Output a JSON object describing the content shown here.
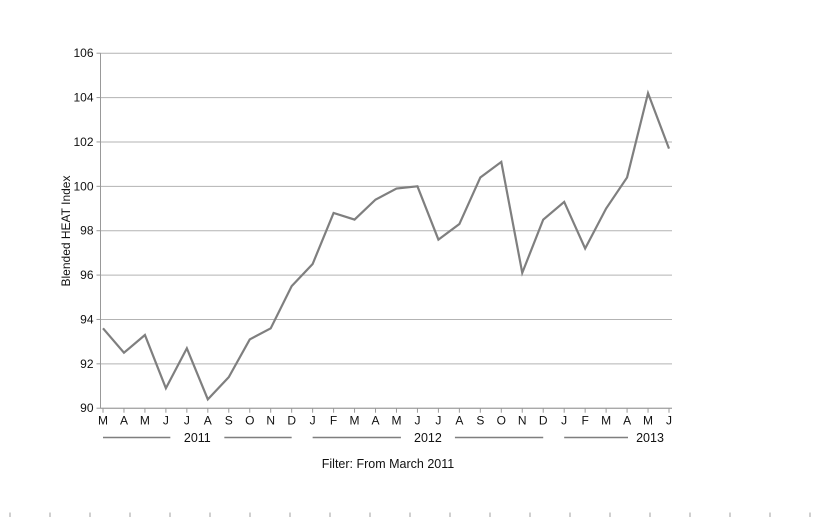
{
  "chart_data": {
    "type": "line",
    "title": "",
    "xlabel": "",
    "ylabel": "Blended HEAT Index",
    "filter_note": "Filter: From March 2011",
    "ylim": [
      90,
      106
    ],
    "yticks": [
      90,
      92,
      94,
      96,
      98,
      100,
      102,
      104,
      106
    ],
    "grid": true,
    "legend": "none",
    "x_tick_labels": [
      "M",
      "A",
      "M",
      "J",
      "J",
      "A",
      "S",
      "O",
      "N",
      "D",
      "J",
      "F",
      "M",
      "A",
      "M",
      "J",
      "J",
      "A",
      "S",
      "O",
      "N",
      "D",
      "J",
      "F",
      "M",
      "A",
      "M",
      "J"
    ],
    "year_groups": [
      {
        "label": "2011",
        "start_index": 0,
        "end_index": 9,
        "label_position": "center"
      },
      {
        "label": "2012",
        "start_index": 10,
        "end_index": 21,
        "label_position": "center"
      },
      {
        "label": "2013",
        "start_index": 22,
        "end_index": 27,
        "label_position": "end"
      }
    ],
    "categories": [
      "Mar 2011",
      "Apr 2011",
      "May 2011",
      "Jun 2011",
      "Jul 2011",
      "Aug 2011",
      "Sep 2011",
      "Oct 2011",
      "Nov 2011",
      "Dec 2011",
      "Jan 2012",
      "Feb 2012",
      "Mar 2012",
      "Apr 2012",
      "May 2012",
      "Jun 2012",
      "Jul 2012",
      "Aug 2012",
      "Sep 2012",
      "Oct 2012",
      "Nov 2012",
      "Dec 2012",
      "Jan 2013",
      "Feb 2013",
      "Mar 2013",
      "Apr 2013",
      "May 2013",
      "Jun 2013"
    ],
    "series": [
      {
        "name": "Blended HEAT Index",
        "values": [
          93.6,
          92.5,
          93.3,
          90.9,
          92.7,
          90.4,
          91.4,
          93.1,
          93.6,
          95.5,
          96.5,
          98.8,
          98.5,
          99.4,
          99.9,
          100.0,
          97.6,
          98.3,
          100.4,
          101.1,
          96.1,
          98.5,
          99.3,
          97.2,
          99.0,
          100.4,
          104.2,
          101.7
        ]
      }
    ],
    "colors": {
      "line": "#7f7f7f",
      "grid": "#b3b3b3",
      "axis": "#999999",
      "text": "#111111",
      "page_ruler_tick": "#d0d0d0",
      "background": "#ffffff"
    }
  }
}
